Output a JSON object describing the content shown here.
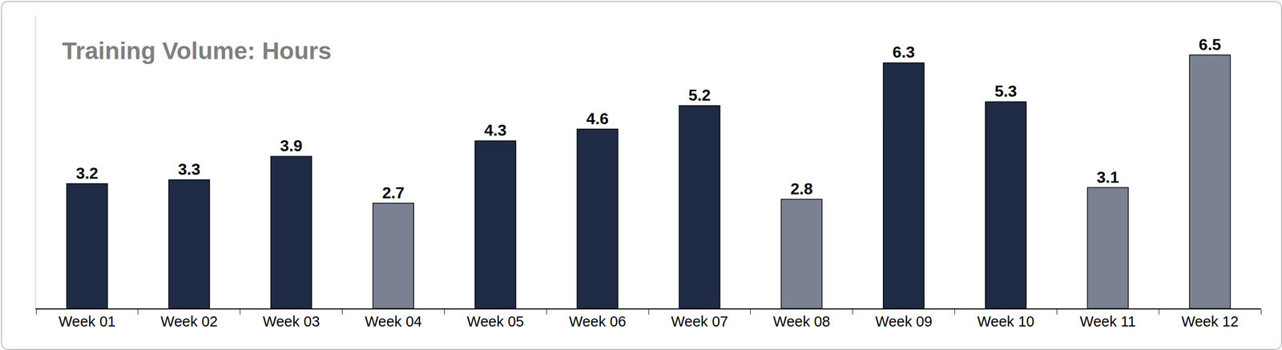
{
  "chart_data": {
    "type": "bar",
    "title": "Training Volume: Hours",
    "categories": [
      "Week 01",
      "Week 02",
      "Week 03",
      "Week 04",
      "Week 05",
      "Week 06",
      "Week 07",
      "Week 08",
      "Week 09",
      "Week 10",
      "Week 11",
      "Week 12"
    ],
    "values": [
      3.2,
      3.3,
      3.9,
      2.7,
      4.3,
      4.6,
      5.2,
      2.8,
      6.3,
      5.3,
      3.1,
      6.5
    ],
    "colors": [
      "#1f2a44",
      "#1f2a44",
      "#1f2a44",
      "#7a8292",
      "#1f2a44",
      "#1f2a44",
      "#1f2a44",
      "#7a8292",
      "#1f2a44",
      "#1f2a44",
      "#7a8292",
      "#7a8292"
    ],
    "ylim": [
      0,
      7.5
    ],
    "grid": false,
    "data_labels": true,
    "tick_labels": "x"
  }
}
